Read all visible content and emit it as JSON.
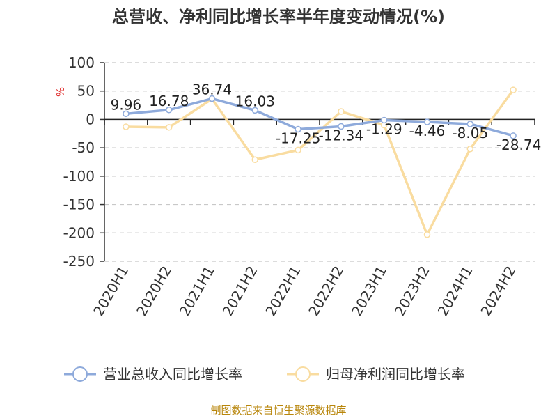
{
  "chart_data": {
    "type": "line",
    "title": "总营收、净利同比增长率半年度变动情况(%)",
    "ylabel": "%",
    "xlabel": "",
    "ylim": [
      -250,
      100
    ],
    "yticks": [
      100,
      50,
      0,
      -50,
      -100,
      -150,
      -200,
      -250
    ],
    "grid": true,
    "legend_position": "bottom",
    "categories": [
      "2020H1",
      "2020H2",
      "2021H1",
      "2021H2",
      "2022H1",
      "2022H2",
      "2023H1",
      "2023H2",
      "2024H1",
      "2024H2"
    ],
    "series": [
      {
        "name": "营业总收入同比增长率",
        "color": "#8eaadb",
        "values": [
          9.96,
          16.78,
          36.74,
          16.03,
          -17.25,
          -12.34,
          -1.29,
          -4.46,
          -8.05,
          -28.74
        ],
        "labels": [
          "9.96",
          "16.78",
          "36.74",
          "16.03",
          "-17.25",
          "-12.34",
          "-1.29",
          "-4.46",
          "-8.05",
          "-28.74"
        ]
      },
      {
        "name": "归母净利润同比增长率",
        "color": "#f9dca0",
        "values": [
          -13,
          -14,
          36,
          -71,
          -54,
          14,
          -10,
          -203,
          -52,
          52
        ]
      }
    ],
    "source": "制图数据来自恒生聚源数据库"
  }
}
